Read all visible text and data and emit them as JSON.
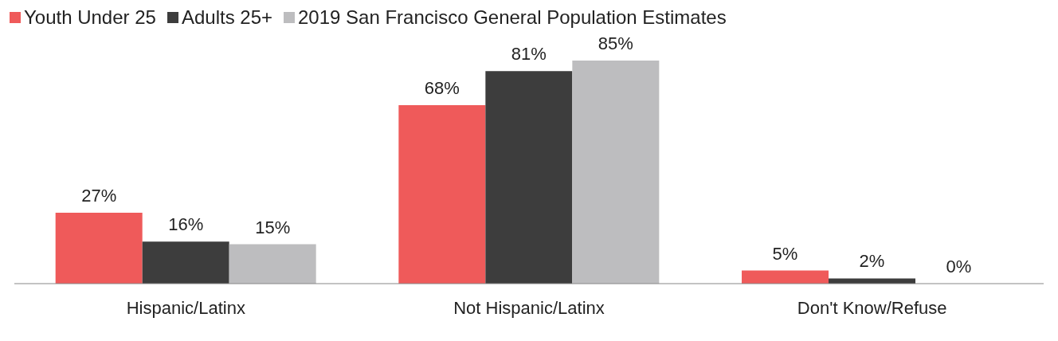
{
  "chart_data": {
    "type": "bar",
    "categories": [
      "Hispanic/Latinx",
      "Not Hispanic/Latinx",
      "Don't Know/Refuse"
    ],
    "series": [
      {
        "name": "Youth Under 25",
        "color": "#ef5a5a",
        "values": [
          27,
          68,
          5
        ],
        "value_labels": [
          "27%",
          "68%",
          "5%"
        ]
      },
      {
        "name": "Adults 25+",
        "color": "#3d3d3d",
        "values": [
          16,
          81,
          2
        ],
        "value_labels": [
          "16%",
          "81%",
          "2%"
        ]
      },
      {
        "name": "2019 San Francisco General Population Estimates",
        "color": "#bdbdbf",
        "values": [
          15,
          85,
          0
        ],
        "value_labels": [
          "15%",
          "85%",
          "0%"
        ]
      }
    ],
    "legend": "top left",
    "grid": false
  }
}
